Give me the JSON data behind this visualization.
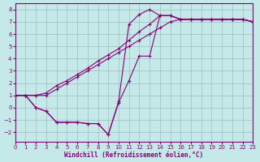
{
  "bg_color": "#c5e8e8",
  "grid_color": "#9dbdbd",
  "line_color": "#880077",
  "xlabel": "Windchill (Refroidissement éolien,°C)",
  "xlim": [
    0,
    23
  ],
  "ylim": [
    -2.8,
    8.5
  ],
  "yticks": [
    -2,
    -1,
    0,
    1,
    2,
    3,
    4,
    5,
    6,
    7,
    8
  ],
  "xticks": [
    0,
    1,
    2,
    3,
    4,
    5,
    6,
    7,
    8,
    9,
    10,
    11,
    12,
    13,
    14,
    15,
    16,
    17,
    18,
    19,
    20,
    21,
    22,
    23
  ],
  "s1_x": [
    0,
    1,
    2,
    3,
    4,
    5,
    6,
    7,
    8,
    9,
    10,
    11,
    12,
    13,
    14,
    15,
    16,
    17,
    18,
    19,
    20,
    21,
    22,
    23
  ],
  "s1_y": [
    1.0,
    1.0,
    1.0,
    1.0,
    1.5,
    2.0,
    2.5,
    3.0,
    3.5,
    4.0,
    4.5,
    5.0,
    5.5,
    6.0,
    6.5,
    7.0,
    7.2,
    7.2,
    7.2,
    7.2,
    7.2,
    7.2,
    7.2,
    7.0
  ],
  "s2_x": [
    0,
    1,
    2,
    3,
    4,
    5,
    6,
    7,
    8,
    9,
    10,
    11,
    12,
    13,
    14,
    15,
    16,
    17,
    18,
    19,
    20,
    21,
    22,
    23
  ],
  "s2_y": [
    1.0,
    1.0,
    1.0,
    1.2,
    1.8,
    2.2,
    2.7,
    3.2,
    3.8,
    4.3,
    4.8,
    5.5,
    6.2,
    6.8,
    7.5,
    7.5,
    7.2,
    7.2,
    7.2,
    7.2,
    7.2,
    7.2,
    7.2,
    7.0
  ],
  "s3_x": [
    0,
    1,
    2,
    3,
    4,
    5,
    6,
    7,
    8,
    9,
    10,
    11,
    12,
    13,
    14,
    15,
    16,
    17,
    18,
    19,
    20,
    21,
    22,
    23
  ],
  "s3_y": [
    1.0,
    1.0,
    0.0,
    -0.3,
    -1.2,
    -1.2,
    -1.2,
    -1.3,
    -1.3,
    -2.2,
    0.5,
    6.8,
    7.6,
    8.0,
    7.5,
    7.5,
    7.2,
    7.2,
    7.2,
    7.2,
    7.2,
    7.2,
    7.2,
    7.0
  ],
  "s4_x": [
    0,
    1,
    2,
    3,
    4,
    5,
    6,
    7,
    8,
    9,
    10,
    11,
    12,
    13,
    14,
    15,
    16,
    17,
    18,
    19,
    20,
    21,
    22,
    23
  ],
  "s4_y": [
    1.0,
    1.0,
    0.0,
    -0.3,
    -1.2,
    -1.2,
    -1.2,
    -1.3,
    -1.3,
    -2.2,
    0.4,
    2.2,
    4.2,
    4.2,
    7.5,
    7.5,
    7.2,
    7.2,
    7.2,
    7.2,
    7.2,
    7.2,
    7.2,
    7.0
  ]
}
